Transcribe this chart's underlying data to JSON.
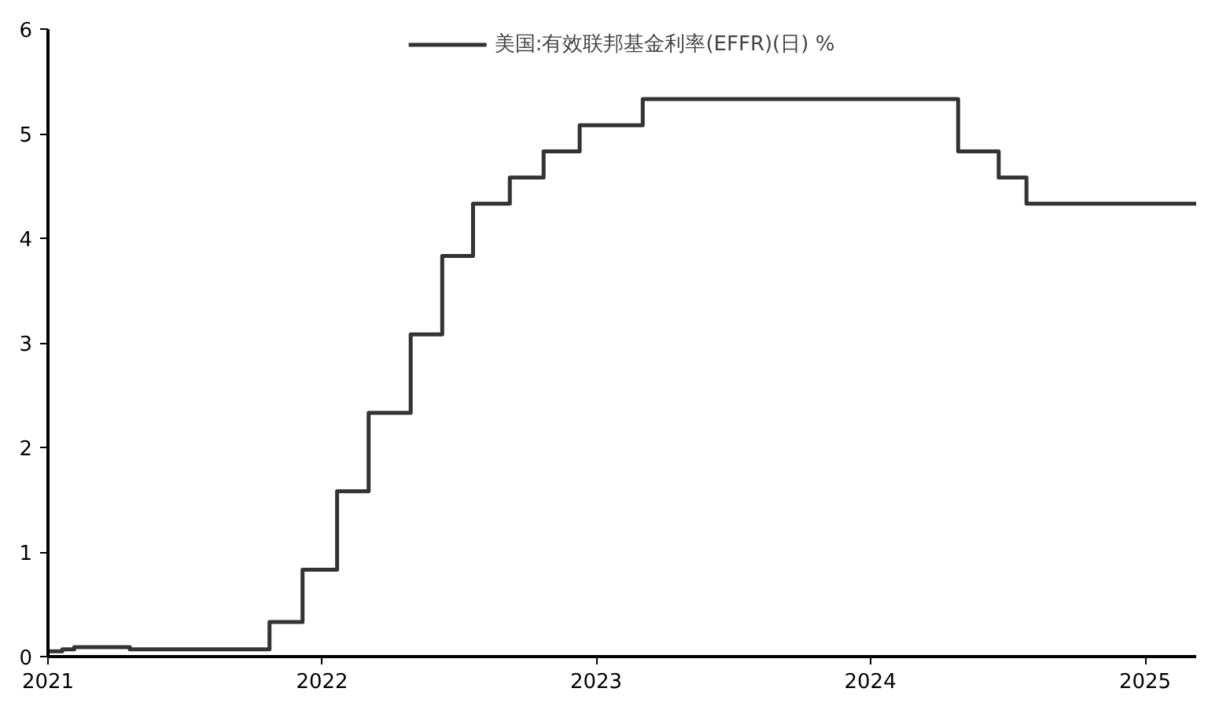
{
  "chart_data": {
    "type": "step",
    "x": [
      "2021-01-01",
      "2021-01-20",
      "2021-02-05",
      "2021-04-20",
      "2021-10-23",
      "2021-12-06",
      "2022-01-21",
      "2022-03-04",
      "2022-04-29",
      "2022-06-10",
      "2022-07-21",
      "2022-09-08",
      "2022-10-23",
      "2022-12-10",
      "2023-03-04",
      "2024-04-27",
      "2024-06-20",
      "2024-07-27",
      "2025-03-10"
    ],
    "series": [
      {
        "name": "美国:有效联邦基金利率(EFFR)(日) %",
        "color": "#333333",
        "values": [
          0.05,
          0.07,
          0.09,
          0.07,
          0.33,
          0.83,
          1.58,
          2.33,
          3.08,
          3.83,
          4.33,
          4.58,
          4.83,
          5.08,
          5.33,
          4.83,
          4.58,
          4.33,
          4.33
        ]
      }
    ],
    "xlim": [
      "2021-01-01",
      "2025-03-10"
    ],
    "xticks": [
      "2021",
      "2022",
      "2023",
      "2024",
      "2025"
    ],
    "ylim": [
      0,
      6
    ],
    "yticks": [
      0,
      1,
      2,
      3,
      4,
      5,
      6
    ],
    "grid": false,
    "legend": "top"
  }
}
